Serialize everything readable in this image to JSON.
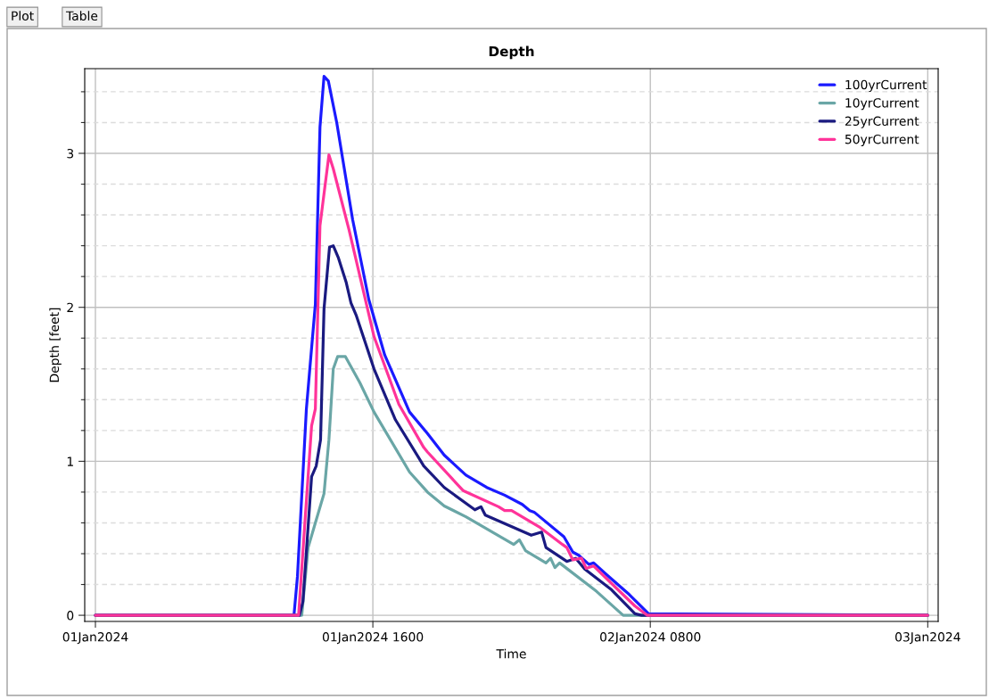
{
  "chart_data": {
    "type": "line",
    "title": "Depth",
    "xlabel": "Time",
    "ylabel": "Depth [feet]",
    "annotations": [
      "Plot",
      "Table"
    ],
    "xlim": [
      "2023-12-31T23:23",
      "2024-01-03T00:36"
    ],
    "ylim": [
      -0.04,
      3.55
    ],
    "xticks": [
      {
        "value": "2024-01-01T00:00",
        "label": "01Jan2024"
      },
      {
        "value": "2024-01-01T16:00",
        "label": "01Jan2024 1600"
      },
      {
        "value": "2024-01-02T08:00",
        "label": "02Jan2024 0800"
      },
      {
        "value": "2024-01-03T00:00",
        "label": "03Jan2024"
      }
    ],
    "yticks": [
      0,
      {
        "value": 0.2,
        "label": null
      },
      {
        "value": 0.4,
        "label": null
      },
      {
        "value": 0.6,
        "label": null
      },
      {
        "value": 0.8,
        "label": null
      },
      1,
      {
        "value": 1.2,
        "label": null
      },
      {
        "value": 1.4,
        "label": null
      },
      {
        "value": 1.6,
        "label": null
      },
      {
        "value": 1.8,
        "label": null
      },
      2,
      {
        "value": 2.2,
        "label": null
      },
      {
        "value": 2.4,
        "label": null
      },
      {
        "value": 2.6,
        "label": null
      },
      {
        "value": 2.8,
        "label": null
      },
      3,
      {
        "value": 3.2,
        "label": null
      },
      {
        "value": 3.4,
        "label": null
      }
    ],
    "grid": true,
    "legend": "top right",
    "line_style": "solid",
    "marker": "none",
    "series": [
      {
        "name": "100yrCurrent",
        "color": "#1a1aff",
        "x": [
          "2024-01-01T00:00",
          "2024-01-01T11:27",
          "2024-01-01T11:39",
          "2024-01-01T12:10",
          "2024-01-01T12:41",
          "2024-01-01T12:57",
          "2024-01-01T13:11",
          "2024-01-01T13:26",
          "2024-01-01T13:55",
          "2024-01-01T14:50",
          "2024-01-01T15:46",
          "2024-01-01T16:41",
          "2024-01-01T18:07",
          "2024-01-01T19:09",
          "2024-01-01T20:07",
          "2024-01-01T21:22",
          "2024-01-01T22:34",
          "2024-01-01T23:36",
          "2024-01-02T00:37",
          "2024-01-02T01:03",
          "2024-01-02T01:18",
          "2024-01-02T03:01",
          "2024-01-02T03:32",
          "2024-01-02T03:52",
          "2024-01-02T04:28",
          "2024-01-02T04:44",
          "2024-01-02T05:25",
          "2024-01-02T06:47",
          "2024-01-02T07:54",
          "2024-01-03T00:00"
        ],
        "values": [
          0,
          0,
          0.25,
          1.34,
          2.02,
          3.17,
          3.5,
          3.47,
          3.2,
          2.57,
          2.05,
          1.69,
          1.32,
          1.18,
          1.04,
          0.91,
          0.83,
          0.78,
          0.72,
          0.68,
          0.67,
          0.51,
          0.41,
          0.39,
          0.33,
          0.34,
          0.27,
          0.135,
          0.01,
          0
        ]
      },
      {
        "name": "10yrCurrent",
        "color": "#6aa6a6",
        "x": [
          "2024-01-01T00:00",
          "2024-01-01T11:54",
          "2024-01-01T12:16",
          "2024-01-01T12:41",
          "2024-01-01T13:11",
          "2024-01-01T13:28",
          "2024-01-01T13:43",
          "2024-01-01T13:58",
          "2024-01-01T14:25",
          "2024-01-01T15:15",
          "2024-01-01T16:04",
          "2024-01-01T18:07",
          "2024-01-01T19:09",
          "2024-01-01T20:07",
          "2024-01-01T21:22",
          "2024-01-02T00:07",
          "2024-01-02T00:27",
          "2024-01-02T00:48",
          "2024-01-02T01:59",
          "2024-01-02T02:15",
          "2024-01-02T02:30",
          "2024-01-02T02:46",
          "2024-01-02T04:54",
          "2024-01-02T06:26",
          "2024-01-03T00:00"
        ],
        "values": [
          0,
          0,
          0.44,
          0.6,
          0.79,
          1.14,
          1.6,
          1.68,
          1.68,
          1.51,
          1.32,
          0.93,
          0.8,
          0.71,
          0.64,
          0.46,
          0.49,
          0.42,
          0.34,
          0.37,
          0.31,
          0.34,
          0.155,
          0,
          0
        ]
      },
      {
        "name": "25yrCurrent",
        "color": "#1a1a80",
        "x": [
          "2024-01-01T00:00",
          "2024-01-01T11:46",
          "2024-01-01T11:58",
          "2024-01-01T12:28",
          "2024-01-01T12:44",
          "2024-01-01T12:59",
          "2024-01-01T13:11",
          "2024-01-01T13:30",
          "2024-01-01T13:43",
          "2024-01-01T14:01",
          "2024-01-01T14:28",
          "2024-01-01T14:44",
          "2024-01-01T15:02",
          "2024-01-01T16:04",
          "2024-01-01T17:18",
          "2024-01-01T18:56",
          "2024-01-01T20:07",
          "2024-01-01T21:53",
          "2024-01-01T22:14",
          "2024-01-01T22:29",
          "2024-01-02T01:08",
          "2024-01-02T01:44",
          "2024-01-02T01:59",
          "2024-01-02T03:11",
          "2024-01-02T03:42",
          "2024-01-02T04:13",
          "2024-01-02T05:46",
          "2024-01-02T07:07",
          "2024-01-02T07:30",
          "2024-01-03T00:00"
        ],
        "values": [
          0,
          0,
          0.09,
          0.9,
          0.97,
          1.14,
          1.99,
          2.39,
          2.4,
          2.32,
          2.16,
          2.03,
          1.95,
          1.6,
          1.27,
          0.97,
          0.83,
          0.685,
          0.705,
          0.65,
          0.52,
          0.54,
          0.44,
          0.35,
          0.37,
          0.3,
          0.165,
          0.01,
          0,
          0
        ]
      },
      {
        "name": "50yrCurrent",
        "color": "#ff3399",
        "x": [
          "2024-01-01T00:00",
          "2024-01-01T11:43",
          "2024-01-01T12:04",
          "2024-01-01T12:28",
          "2024-01-01T12:41",
          "2024-01-01T12:57",
          "2024-01-01T13:28",
          "2024-01-01T13:43",
          "2024-01-01T14:38",
          "2024-01-01T16:04",
          "2024-01-01T17:30",
          "2024-01-01T18:56",
          "2024-01-01T19:09",
          "2024-01-01T21:12",
          "2024-01-01T23:15",
          "2024-01-01T23:36",
          "2024-01-02T00:00",
          "2024-01-02T01:39",
          "2024-01-02T02:56",
          "2024-01-02T03:11",
          "2024-01-02T03:32",
          "2024-01-02T04:02",
          "2024-01-02T04:18",
          "2024-01-02T04:44",
          "2024-01-02T06:06",
          "2024-01-02T07:07",
          "2024-01-02T07:49",
          "2024-01-03T00:00"
        ],
        "values": [
          0,
          0,
          0.58,
          1.23,
          1.34,
          2.53,
          2.99,
          2.9,
          2.5,
          1.81,
          1.37,
          1.09,
          1.06,
          0.81,
          0.705,
          0.68,
          0.68,
          0.57,
          0.46,
          0.44,
          0.36,
          0.37,
          0.305,
          0.32,
          0.17,
          0.06,
          0,
          0
        ]
      }
    ]
  }
}
